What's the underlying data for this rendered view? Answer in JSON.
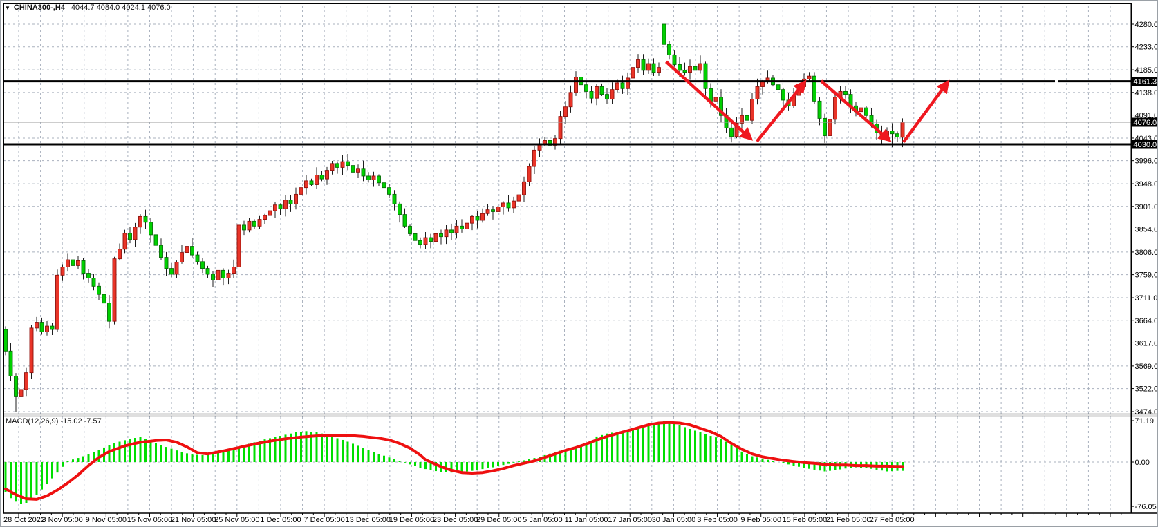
{
  "window": {
    "dropdown_icon": "▼",
    "symbol_timeframe": "CHINA300-,H4",
    "ohlc_text": "4044.7 4084.0 4024.1 4076.0"
  },
  "price_axis": {
    "ticks": [
      4280.0,
      4233.0,
      4185.0,
      4138.0,
      4091.0,
      4043.0,
      3996.0,
      3948.0,
      3901.0,
      3854.0,
      3806.0,
      3759.0,
      3711.0,
      3664.0,
      3617.0,
      3569.0,
      3522.0,
      3474.0
    ]
  },
  "time_axis": {
    "labels": [
      "28 Oct 2022",
      "3 Nov 05:00",
      "9 Nov 05:00",
      "15 Nov 05:00",
      "21 Nov 05:00",
      "25 Nov 05:00",
      "1 Dec 05:00",
      "7 Dec 05:00",
      "13 Dec 05:00",
      "19 Dec 05:00",
      "23 Dec 05:00",
      "29 Dec 05:00",
      "5 Jan 05:00",
      "11 Jan 05:00",
      "17 Jan 05:00",
      "30 Jan 05:00",
      "3 Feb 05:00",
      "9 Feb 05:00",
      "15 Feb 05:00",
      "21 Feb 05:00",
      "27 Feb 05:00"
    ]
  },
  "levels": {
    "resistance": {
      "price": 4161.3,
      "label": "4161.3"
    },
    "support": {
      "price": 4030.0,
      "label": "4030.0"
    },
    "current": {
      "price": 4076.0,
      "label": "4076.0"
    }
  },
  "macd_panel": {
    "label": "MACD(12,26,9) -15.02 -7.57",
    "axis_max": "71.19",
    "axis_zero": "0.00",
    "axis_min": "-76.05"
  },
  "chart_data": {
    "type": "candlestick",
    "title": "CHINA300- H4 with MACD(12,26,9)",
    "price_range": [
      3474.0,
      4280.0
    ],
    "macd_range": [
      -76.05,
      71.19
    ],
    "grid": true,
    "candles": {
      "first_open": 3645,
      "closes": [
        3600,
        3548,
        3505,
        3520,
        3555,
        3648,
        3660,
        3640,
        3652,
        3645,
        3758,
        3775,
        3790,
        3778,
        3788,
        3762,
        3752,
        3735,
        3718,
        3700,
        3662,
        3792,
        3812,
        3845,
        3832,
        3858,
        3880,
        3868,
        3842,
        3820,
        3795,
        3772,
        3760,
        3785,
        3805,
        3818,
        3800,
        3786,
        3772,
        3760,
        3748,
        3768,
        3752,
        3762,
        3775,
        3862,
        3852,
        3870,
        3860,
        3874,
        3882,
        3892,
        3904,
        3896,
        3914,
        3906,
        3926,
        3940,
        3954,
        3946,
        3966,
        3958,
        3976,
        3990,
        3982,
        3994,
        3986,
        3972,
        3980,
        3964,
        3956,
        3964,
        3950,
        3940,
        3926,
        3906,
        3884,
        3860,
        3844,
        3830,
        3822,
        3836,
        3828,
        3844,
        3838,
        3852,
        3846,
        3860,
        3854,
        3866,
        3880,
        3872,
        3886,
        3894,
        3890,
        3900,
        3908,
        3898,
        3912,
        3925,
        3952,
        3984,
        4018,
        4030,
        4038,
        4028,
        4042,
        4088,
        4108,
        4138,
        4170,
        4154,
        4140,
        4126,
        4150,
        4134,
        4124,
        4144,
        4158,
        4146,
        4168,
        4190,
        4206,
        4184,
        4198,
        4180,
        4190,
        4238,
        4216,
        4196,
        4184,
        4180,
        4192,
        4184,
        4198,
        4146,
        4120,
        4128,
        4090,
        4064,
        4046,
        4074,
        4090,
        4080,
        4124,
        4150,
        4160,
        4168,
        4154,
        4144,
        4122,
        4110,
        4132,
        4150,
        4166,
        4172,
        4120,
        4084,
        4048,
        4082,
        4128,
        4140,
        4134,
        4110,
        4098,
        4106,
        4090,
        4072,
        4054,
        4044,
        4058,
        4052,
        4045,
        4076
      ],
      "open_overrides": {
        "127": 4280,
        "173": 4044.7
      },
      "high_overrides": {
        "121": 4215,
        "122": 4218,
        "127": 4283,
        "134": 4215,
        "173": 4084
      },
      "low_overrides": {
        "2": 3474,
        "140": 4034,
        "158": 4033,
        "169": 4030,
        "171": 4024,
        "173": 4024.1
      }
    },
    "macd": {
      "histogram_keyframes": [
        [
          0,
          -52
        ],
        [
          1,
          -62
        ],
        [
          2,
          -68
        ],
        [
          3,
          -72
        ],
        [
          4,
          -70
        ],
        [
          5,
          -64
        ],
        [
          6,
          -56
        ],
        [
          7,
          -47
        ],
        [
          8,
          -38
        ],
        [
          9,
          -28
        ],
        [
          10,
          -18
        ],
        [
          11,
          -8
        ],
        [
          12,
          2
        ],
        [
          14,
          7
        ],
        [
          16,
          13
        ],
        [
          18,
          21
        ],
        [
          20,
          29
        ],
        [
          22,
          35
        ],
        [
          24,
          40
        ],
        [
          26,
          43
        ],
        [
          28,
          36
        ],
        [
          30,
          29
        ],
        [
          32,
          23
        ],
        [
          34,
          17
        ],
        [
          36,
          13
        ],
        [
          38,
          12
        ],
        [
          40,
          15
        ],
        [
          42,
          19
        ],
        [
          44,
          24
        ],
        [
          46,
          29
        ],
        [
          48,
          34
        ],
        [
          50,
          39
        ],
        [
          52,
          43
        ],
        [
          54,
          47
        ],
        [
          56,
          51
        ],
        [
          58,
          53
        ],
        [
          60,
          51
        ],
        [
          62,
          47
        ],
        [
          64,
          41
        ],
        [
          66,
          35
        ],
        [
          68,
          28
        ],
        [
          70,
          21
        ],
        [
          72,
          14
        ],
        [
          74,
          8
        ],
        [
          75,
          5
        ],
        [
          76,
          2
        ],
        [
          77,
          -1
        ],
        [
          78,
          -4
        ],
        [
          80,
          -10
        ],
        [
          82,
          -14
        ],
        [
          84,
          -17
        ],
        [
          86,
          -18
        ],
        [
          88,
          -17
        ],
        [
          90,
          -15
        ],
        [
          92,
          -12
        ],
        [
          94,
          -9
        ],
        [
          96,
          -5
        ],
        [
          98,
          -1
        ],
        [
          100,
          3
        ],
        [
          102,
          7
        ],
        [
          104,
          12
        ],
        [
          106,
          17
        ],
        [
          108,
          22
        ],
        [
          110,
          26
        ],
        [
          112,
          31
        ],
        [
          113,
          36
        ],
        [
          114,
          44
        ],
        [
          116,
          49
        ],
        [
          118,
          52
        ],
        [
          120,
          55
        ],
        [
          122,
          58
        ],
        [
          124,
          62
        ],
        [
          126,
          67
        ],
        [
          127,
          70
        ],
        [
          128,
          69
        ],
        [
          130,
          63
        ],
        [
          132,
          57
        ],
        [
          134,
          51
        ],
        [
          136,
          45
        ],
        [
          138,
          40
        ],
        [
          140,
          30
        ],
        [
          141,
          24
        ],
        [
          142,
          18
        ],
        [
          143,
          14
        ],
        [
          144,
          10
        ],
        [
          146,
          6
        ],
        [
          148,
          2
        ],
        [
          149,
          0
        ],
        [
          150,
          -2
        ],
        [
          152,
          -6
        ],
        [
          154,
          -10
        ],
        [
          156,
          -13
        ],
        [
          158,
          -16
        ],
        [
          160,
          -14
        ],
        [
          162,
          -11
        ],
        [
          164,
          -9
        ],
        [
          166,
          -10
        ],
        [
          168,
          -13
        ],
        [
          170,
          -16
        ],
        [
          172,
          -15
        ],
        [
          173,
          -15
        ]
      ],
      "signal_keyframes": [
        [
          0,
          -46
        ],
        [
          2,
          -56
        ],
        [
          4,
          -63
        ],
        [
          6,
          -64
        ],
        [
          8,
          -58
        ],
        [
          10,
          -48
        ],
        [
          12,
          -36
        ],
        [
          14,
          -22
        ],
        [
          16,
          -6
        ],
        [
          18,
          8
        ],
        [
          20,
          18
        ],
        [
          23,
          28
        ],
        [
          26,
          34
        ],
        [
          29,
          37
        ],
        [
          31,
          38
        ],
        [
          33,
          34
        ],
        [
          35,
          26
        ],
        [
          37,
          16
        ],
        [
          39,
          14
        ],
        [
          42,
          19
        ],
        [
          45,
          25
        ],
        [
          48,
          31
        ],
        [
          51,
          36
        ],
        [
          54,
          40
        ],
        [
          57,
          43
        ],
        [
          60,
          45
        ],
        [
          63,
          46
        ],
        [
          66,
          46
        ],
        [
          69,
          44
        ],
        [
          72,
          41
        ],
        [
          74,
          38
        ],
        [
          76,
          32
        ],
        [
          78,
          24
        ],
        [
          80,
          12
        ],
        [
          81,
          4
        ],
        [
          82,
          0
        ],
        [
          84,
          -8
        ],
        [
          86,
          -14
        ],
        [
          88,
          -18
        ],
        [
          90,
          -19
        ],
        [
          92,
          -18
        ],
        [
          94,
          -15
        ],
        [
          96,
          -11
        ],
        [
          98,
          -6
        ],
        [
          100,
          -2
        ],
        [
          102,
          2
        ],
        [
          104,
          8
        ],
        [
          106,
          14
        ],
        [
          108,
          20
        ],
        [
          110,
          25
        ],
        [
          112,
          31
        ],
        [
          114,
          38
        ],
        [
          116,
          44
        ],
        [
          118,
          49
        ],
        [
          120,
          54
        ],
        [
          122,
          59
        ],
        [
          124,
          64
        ],
        [
          126,
          67
        ],
        [
          128,
          68
        ],
        [
          130,
          67
        ],
        [
          132,
          64
        ],
        [
          134,
          58
        ],
        [
          136,
          52
        ],
        [
          138,
          44
        ],
        [
          140,
          32
        ],
        [
          142,
          22
        ],
        [
          144,
          14
        ],
        [
          146,
          9
        ],
        [
          148,
          6
        ],
        [
          150,
          3
        ],
        [
          152,
          1
        ],
        [
          154,
          -1
        ],
        [
          156,
          -2
        ],
        [
          158,
          -4
        ],
        [
          160,
          -5
        ],
        [
          162,
          -5
        ],
        [
          164,
          -6
        ],
        [
          166,
          -6
        ],
        [
          168,
          -7
        ],
        [
          170,
          -7
        ],
        [
          173,
          -7.57
        ]
      ]
    },
    "annotations": {
      "arrows": [
        {
          "from_index": 127.4,
          "from_price": 4202,
          "to_index": 143.6,
          "to_price": 4043
        },
        {
          "from_index": 144.9,
          "from_price": 4036,
          "to_index": 154.0,
          "to_price": 4158
        },
        {
          "from_index": 157.3,
          "from_price": 4162,
          "to_index": 170.3,
          "to_price": 4040
        },
        {
          "from_index": 173.2,
          "from_price": 4035,
          "to_index": 181.6,
          "to_price": 4158
        }
      ]
    },
    "colors": {
      "bull_body": "#e93428",
      "bull_border": "#8f100b",
      "bear_body": "#00d000",
      "bear_border": "#076d07",
      "wick": "#1f1f1f",
      "grid": "#a9b1be",
      "macd_histogram": "#00de00",
      "macd_signal": "#ee1010",
      "arrow": "#ef1820",
      "level_line": "#000000",
      "current_price_line": "#9b9b9b",
      "tag_bg": "#000000",
      "tag_text": "#ffffff",
      "axis_text": "#000000"
    }
  }
}
